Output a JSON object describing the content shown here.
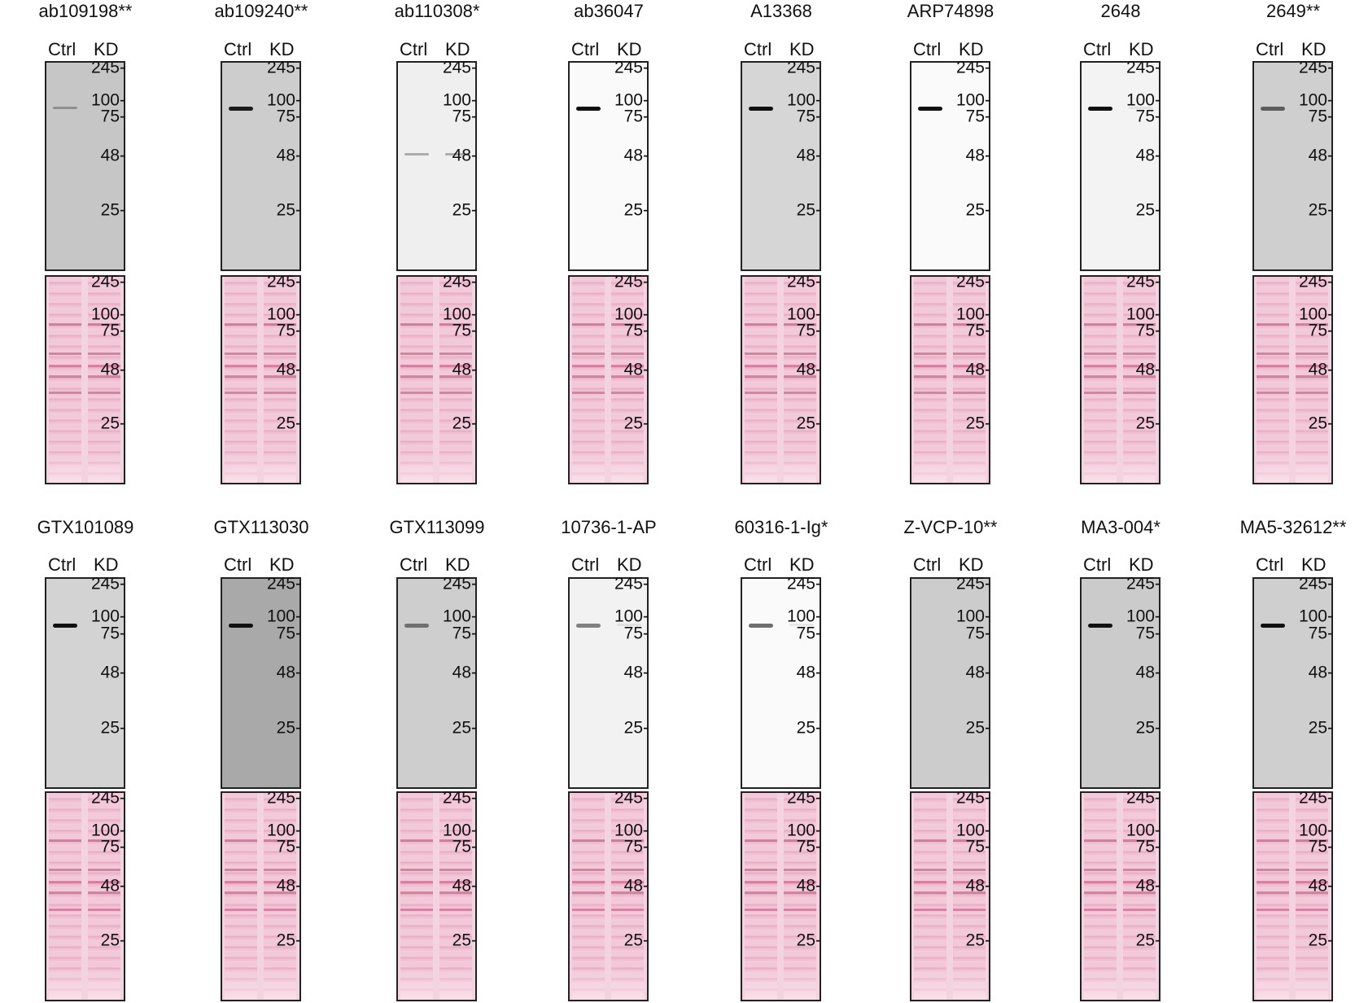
{
  "lane_labels": {
    "ctrl": "Ctrl",
    "kd": "KD"
  },
  "markers_kda": [
    "245",
    "100",
    "75",
    "48",
    "25"
  ],
  "ponceau_color": "#f3d3df",
  "band_color": "#111111",
  "panels": [
    {
      "antibody": "ab109198**",
      "blot_background": "#c6c6c6",
      "band_kda": 90,
      "ctrl_intensity": 0.3,
      "kd_intensity": 0.0
    },
    {
      "antibody": "ab109240**",
      "blot_background": "#cdcdcd",
      "band_kda": 90,
      "ctrl_intensity": 0.95,
      "kd_intensity": 0.0
    },
    {
      "antibody": "ab110308*",
      "blot_background": "#efefef",
      "band_kda": 48,
      "ctrl_intensity": 0.3,
      "kd_intensity": 0.3
    },
    {
      "antibody": "ab36047",
      "blot_background": "#fafafa",
      "band_kda": 90,
      "ctrl_intensity": 1.0,
      "kd_intensity": 0.0
    },
    {
      "antibody": "A13368",
      "blot_background": "#d6d6d6",
      "band_kda": 90,
      "ctrl_intensity": 1.0,
      "kd_intensity": 0.0
    },
    {
      "antibody": "ARP74898",
      "blot_background": "#fafafa",
      "band_kda": 90,
      "ctrl_intensity": 1.0,
      "kd_intensity": 0.0
    },
    {
      "antibody": "2648",
      "blot_background": "#f3f3f3",
      "band_kda": 90,
      "ctrl_intensity": 1.0,
      "kd_intensity": 0.08
    },
    {
      "antibody": "2649**",
      "blot_background": "#cfcfcf",
      "band_kda": 90,
      "ctrl_intensity": 0.6,
      "kd_intensity": 0.0
    },
    {
      "antibody": "GTX101089",
      "blot_background": "#d3d3d3",
      "band_kda": 90,
      "ctrl_intensity": 1.0,
      "kd_intensity": 0.0
    },
    {
      "antibody": "GTX113030",
      "blot_background": "#a9a9a9",
      "band_kda": 90,
      "ctrl_intensity": 1.0,
      "kd_intensity": 0.0
    },
    {
      "antibody": "GTX113099",
      "blot_background": "#cecece",
      "band_kda": 90,
      "ctrl_intensity": 0.5,
      "kd_intensity": 0.0
    },
    {
      "antibody": "10736-1-AP",
      "blot_background": "#f2f2f2",
      "band_kda": 90,
      "ctrl_intensity": 0.5,
      "kd_intensity": 0.08
    },
    {
      "antibody": "60316-1-Ig*",
      "blot_background": "#fafafa",
      "band_kda": 90,
      "ctrl_intensity": 0.6,
      "kd_intensity": 0.08
    },
    {
      "antibody": "Z-VCP-10**",
      "blot_background": "#cccccc",
      "band_kda": 90,
      "ctrl_intensity": 0.0,
      "kd_intensity": 0.0
    },
    {
      "antibody": "MA3-004*",
      "blot_background": "#cbcbcb",
      "band_kda": 90,
      "ctrl_intensity": 1.0,
      "kd_intensity": 0.0
    },
    {
      "antibody": "MA5-32612**",
      "blot_background": "#cfcfcf",
      "band_kda": 90,
      "ctrl_intensity": 1.0,
      "kd_intensity": 0.0
    }
  ]
}
